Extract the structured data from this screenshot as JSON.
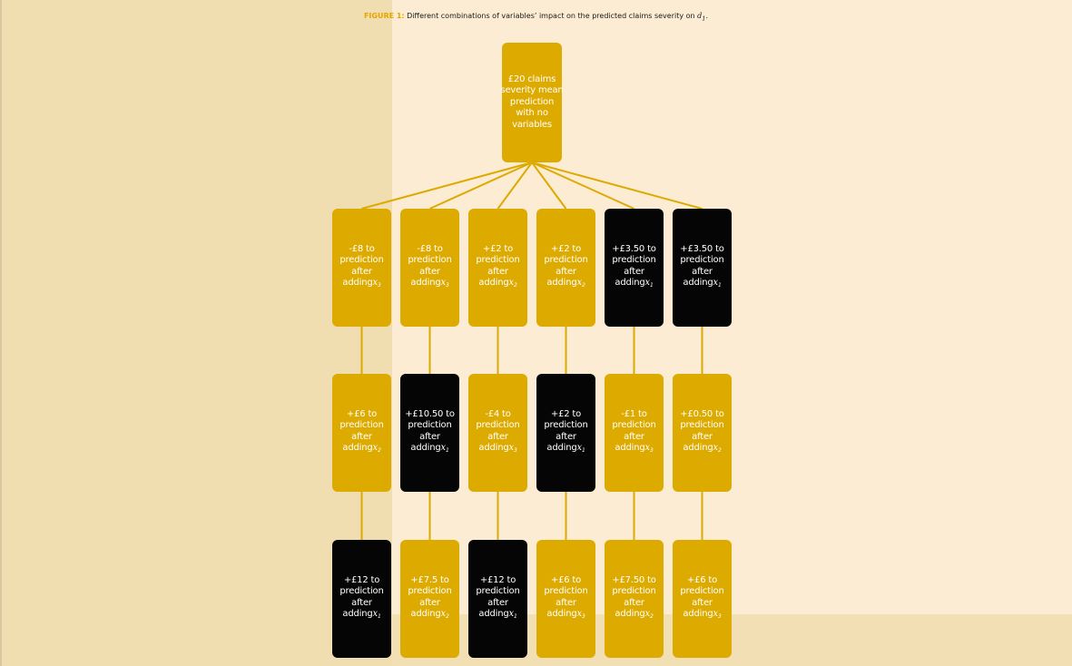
{
  "caption": {
    "label": "FIGURE 1:",
    "text": "Different combinations of variables’ impact on the predicted claims severity on",
    "symbol": "d",
    "symbol_sub": "1",
    "end": "."
  },
  "colors": {
    "gold": "#ddaa00",
    "black": "#050505",
    "line": "#ddaa00",
    "caption_label": "#e6a600"
  },
  "root": {
    "lines": [
      "£20 claims",
      "severity mean",
      "prediction",
      "with no",
      "variables"
    ]
  },
  "paths": [
    {
      "nodes": [
        {
          "amount": "-£8 to",
          "var": "3",
          "style": "gold"
        },
        {
          "amount": "+£6 to",
          "var": "2",
          "style": "gold"
        },
        {
          "amount": "+£12 to",
          "var": "1",
          "style": "black"
        }
      ]
    },
    {
      "nodes": [
        {
          "amount": "-£8 to",
          "var": "3",
          "style": "gold"
        },
        {
          "amount": "+£10.50 to",
          "var": "1",
          "style": "black"
        },
        {
          "amount": "+£7.5 to",
          "var": "2",
          "style": "gold"
        }
      ]
    },
    {
      "nodes": [
        {
          "amount": "+£2 to",
          "var": "2",
          "style": "gold"
        },
        {
          "amount": "-£4 to",
          "var": "3",
          "style": "gold"
        },
        {
          "amount": "+£12 to",
          "var": "1",
          "style": "black"
        }
      ]
    },
    {
      "nodes": [
        {
          "amount": "+£2 to",
          "var": "2",
          "style": "gold"
        },
        {
          "amount": "+£2 to",
          "var": "1",
          "style": "black"
        },
        {
          "amount": "+£6 to",
          "var": "3",
          "style": "gold"
        }
      ]
    },
    {
      "nodes": [
        {
          "amount": "+£3.50 to",
          "var": "1",
          "style": "black"
        },
        {
          "amount": "-£1 to",
          "var": "3",
          "style": "gold"
        },
        {
          "amount": "+£7.50 to",
          "var": "2",
          "style": "gold"
        }
      ]
    },
    {
      "nodes": [
        {
          "amount": "+£3.50 to",
          "var": "1",
          "style": "black"
        },
        {
          "amount": "+£0.50 to",
          "var": "2",
          "style": "gold"
        },
        {
          "amount": "+£6 to",
          "var": "3",
          "style": "gold"
        }
      ]
    }
  ],
  "node_text": {
    "line2": "prediction",
    "line3": "after",
    "line4_prefix": "adding",
    "var_symbol": "x"
  }
}
